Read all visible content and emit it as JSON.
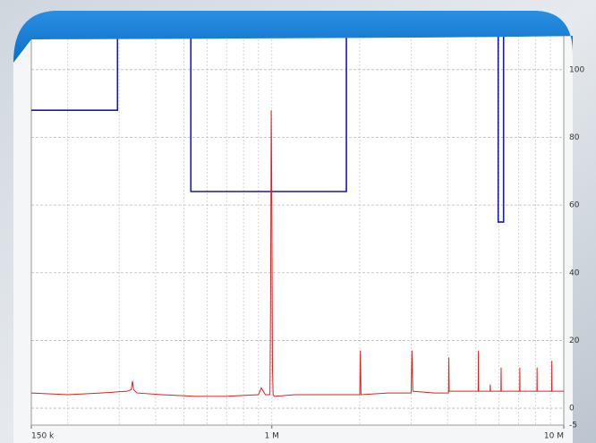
{
  "chart_data": {
    "type": "line",
    "xscale": "log",
    "grid": true,
    "xlim": [
      150000,
      10000000
    ],
    "xticks": [
      {
        "value": 150000,
        "label": "150 k"
      },
      {
        "value": 1000000,
        "label": "1 M"
      },
      {
        "value": 10000000,
        "label": "10 M"
      }
    ],
    "ylim": [
      -5,
      110
    ],
    "yticks": [
      -5,
      0,
      20,
      40,
      60,
      80,
      100
    ],
    "series": [
      {
        "color": "#1a1aaa",
        "x": [
          150000,
          296000,
          296000,
          528000,
          528000,
          1800000,
          1800000,
          5960000,
          5960000,
          6220000,
          6220000
        ],
        "values": [
          88,
          88,
          110,
          110,
          64,
          64,
          110,
          110,
          55,
          55,
          110
        ]
      },
      {
        "color": "#e02020",
        "x": [
          150000,
          200000,
          260000,
          320000,
          330000,
          333000,
          336000,
          345000,
          420000,
          550000,
          700000,
          900000,
          920000,
          950000,
          985000,
          990000,
          995000,
          1000000,
          1005000,
          1010000,
          1020000,
          1200000,
          1600000,
          2000000,
          2010000,
          2020000,
          2500000,
          3000000,
          3020000,
          3040000,
          3600000,
          4030000,
          4040000,
          4050000,
          4600000,
          5090000,
          5100000,
          5110000,
          5590000,
          5600000,
          5610000,
          6090000,
          6100000,
          6110000,
          7060000,
          7070000,
          7080000,
          8090000,
          8100000,
          8110000,
          9090000,
          9100000,
          9110000,
          10000000
        ],
        "values": [
          4.5,
          4,
          4.5,
          5,
          5.5,
          8,
          5.5,
          4.5,
          4,
          3.5,
          3.5,
          4,
          6,
          4,
          4,
          30,
          88,
          60,
          12,
          4,
          3.5,
          4,
          4,
          4,
          17,
          4,
          4.5,
          4.5,
          17,
          5,
          4.5,
          4.5,
          15,
          5,
          5,
          5,
          17,
          5,
          5,
          7,
          5,
          5,
          12,
          5,
          5,
          12,
          5,
          5,
          12,
          5,
          5,
          14,
          5,
          5
        ]
      }
    ]
  }
}
